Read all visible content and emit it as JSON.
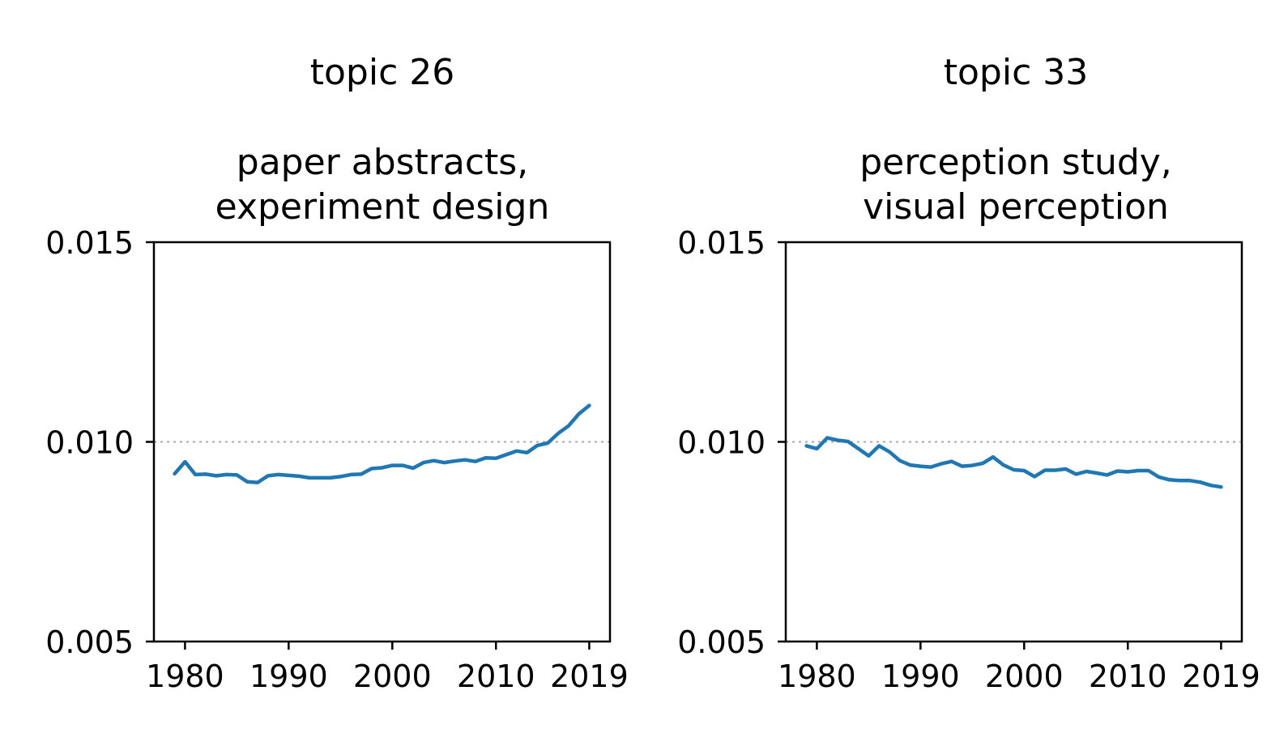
{
  "chart_data": [
    {
      "type": "line",
      "title_line1": "topic 26",
      "title_line2": "paper abstracts,",
      "title_line3": "experiment design",
      "xlabel": "",
      "ylabel": "",
      "xlim": [
        1977,
        2021
      ],
      "ylim": [
        0.005,
        0.015
      ],
      "xticks": [
        1980,
        1990,
        2000,
        2010,
        2019
      ],
      "xtick_labels": [
        "1980",
        "1990",
        "2000",
        "2010",
        "2019"
      ],
      "yticks": [
        0.005,
        0.01,
        0.015
      ],
      "ytick_labels": [
        "0.005",
        "0.010",
        "0.015"
      ],
      "reference_line": 0.01,
      "grid": false,
      "color": "#1f77b4",
      "x": [
        1979,
        1980,
        1981,
        1982,
        1983,
        1984,
        1985,
        1986,
        1987,
        1988,
        1989,
        1990,
        1991,
        1992,
        1993,
        1994,
        1995,
        1996,
        1997,
        1998,
        1999,
        2000,
        2001,
        2002,
        2003,
        2004,
        2005,
        2006,
        2007,
        2008,
        2009,
        2010,
        2011,
        2012,
        2013,
        2014,
        2015,
        2016,
        2017,
        2018,
        2019
      ],
      "values": [
        0.0092,
        0.0095,
        0.00918,
        0.00919,
        0.00915,
        0.00918,
        0.00917,
        0.009,
        0.00898,
        0.00915,
        0.00918,
        0.00916,
        0.00914,
        0.0091,
        0.0091,
        0.0091,
        0.00913,
        0.00918,
        0.00919,
        0.00933,
        0.00935,
        0.00941,
        0.00941,
        0.00934,
        0.00948,
        0.00953,
        0.00948,
        0.00952,
        0.00955,
        0.00951,
        0.0096,
        0.00959,
        0.00968,
        0.00977,
        0.00973,
        0.00991,
        0.00997,
        0.01021,
        0.0104,
        0.0107,
        0.01091
      ]
    },
    {
      "type": "line",
      "title_line1": "topic 33",
      "title_line2": "perception study,",
      "title_line3": "visual perception",
      "xlabel": "",
      "ylabel": "",
      "xlim": [
        1977,
        2021
      ],
      "ylim": [
        0.005,
        0.015
      ],
      "xticks": [
        1980,
        1990,
        2000,
        2010,
        2019
      ],
      "xtick_labels": [
        "1980",
        "1990",
        "2000",
        "2010",
        "2019"
      ],
      "yticks": [
        0.005,
        0.01,
        0.015
      ],
      "ytick_labels": [
        "0.005",
        "0.010",
        "0.015"
      ],
      "reference_line": 0.01,
      "grid": false,
      "color": "#1f77b4",
      "x": [
        1979,
        1980,
        1981,
        1982,
        1983,
        1984,
        1985,
        1986,
        1987,
        1988,
        1989,
        1990,
        1991,
        1992,
        1993,
        1994,
        1995,
        1996,
        1997,
        1998,
        1999,
        2000,
        2001,
        2002,
        2003,
        2004,
        2005,
        2006,
        2007,
        2008,
        2009,
        2010,
        2011,
        2012,
        2013,
        2014,
        2015,
        2016,
        2017,
        2018,
        2019
      ],
      "values": [
        0.0099,
        0.00983,
        0.0101,
        0.01004,
        0.01001,
        0.00983,
        0.00965,
        0.0099,
        0.00975,
        0.00953,
        0.00942,
        0.00939,
        0.00937,
        0.00945,
        0.00951,
        0.00939,
        0.00941,
        0.00946,
        0.00962,
        0.00942,
        0.0093,
        0.00928,
        0.00913,
        0.00929,
        0.00929,
        0.00932,
        0.00919,
        0.00926,
        0.00922,
        0.00917,
        0.00927,
        0.00925,
        0.00928,
        0.00928,
        0.00912,
        0.00905,
        0.00903,
        0.00903,
        0.00899,
        0.00891,
        0.00887
      ]
    }
  ]
}
